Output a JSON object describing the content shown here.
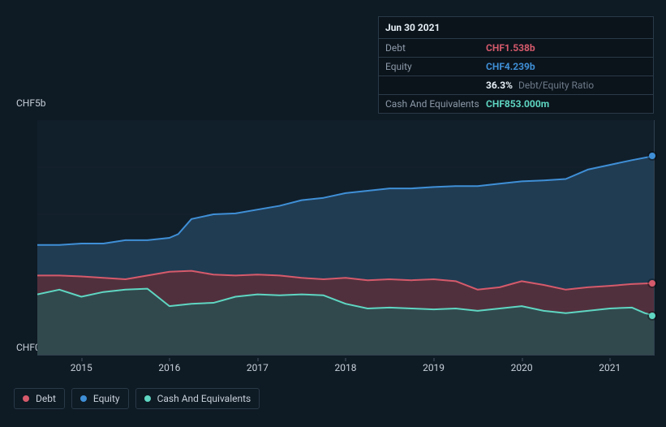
{
  "chart": {
    "type": "area",
    "background_color": "#0e1a24",
    "grid_color": "#16222e",
    "plot_background": "#111f2b",
    "y": {
      "min": 0,
      "max": 5,
      "labels_top": "CHF5b",
      "labels_bottom": "CHF0"
    },
    "x": {
      "min": 2014.5,
      "max": 2021.5,
      "ticks": [
        2015,
        2016,
        2017,
        2018,
        2019,
        2020,
        2021
      ],
      "tick_labels": [
        "2015",
        "2016",
        "2017",
        "2018",
        "2019",
        "2020",
        "2021"
      ]
    },
    "cursor_x": 2021.5,
    "series": {
      "equity": {
        "label": "Equity",
        "color_line": "#3f8fd6",
        "color_fill": "#223f58",
        "fill_opacity": 0.9,
        "line_width": 2,
        "points": [
          [
            2014.5,
            2.35
          ],
          [
            2014.75,
            2.35
          ],
          [
            2015.0,
            2.38
          ],
          [
            2015.25,
            2.38
          ],
          [
            2015.5,
            2.45
          ],
          [
            2015.75,
            2.45
          ],
          [
            2016.0,
            2.5
          ],
          [
            2016.1,
            2.58
          ],
          [
            2016.25,
            2.9
          ],
          [
            2016.5,
            3.0
          ],
          [
            2016.75,
            3.02
          ],
          [
            2017.0,
            3.1
          ],
          [
            2017.25,
            3.18
          ],
          [
            2017.5,
            3.3
          ],
          [
            2017.75,
            3.35
          ],
          [
            2018.0,
            3.45
          ],
          [
            2018.25,
            3.5
          ],
          [
            2018.5,
            3.55
          ],
          [
            2018.75,
            3.55
          ],
          [
            2019.0,
            3.58
          ],
          [
            2019.25,
            3.6
          ],
          [
            2019.5,
            3.6
          ],
          [
            2019.75,
            3.65
          ],
          [
            2020.0,
            3.7
          ],
          [
            2020.25,
            3.72
          ],
          [
            2020.5,
            3.75
          ],
          [
            2020.75,
            3.95
          ],
          [
            2021.0,
            4.05
          ],
          [
            2021.25,
            4.15
          ],
          [
            2021.5,
            4.239
          ]
        ]
      },
      "debt": {
        "label": "Debt",
        "color_line": "#d55a6b",
        "color_fill": "#5a2e3a",
        "fill_opacity": 0.85,
        "line_width": 2,
        "points": [
          [
            2014.5,
            1.7
          ],
          [
            2014.75,
            1.7
          ],
          [
            2015.0,
            1.68
          ],
          [
            2015.25,
            1.65
          ],
          [
            2015.5,
            1.62
          ],
          [
            2015.75,
            1.7
          ],
          [
            2016.0,
            1.78
          ],
          [
            2016.25,
            1.8
          ],
          [
            2016.5,
            1.72
          ],
          [
            2016.75,
            1.7
          ],
          [
            2017.0,
            1.72
          ],
          [
            2017.25,
            1.7
          ],
          [
            2017.5,
            1.65
          ],
          [
            2017.75,
            1.62
          ],
          [
            2018.0,
            1.65
          ],
          [
            2018.25,
            1.6
          ],
          [
            2018.5,
            1.62
          ],
          [
            2018.75,
            1.6
          ],
          [
            2019.0,
            1.62
          ],
          [
            2019.25,
            1.58
          ],
          [
            2019.5,
            1.4
          ],
          [
            2019.75,
            1.45
          ],
          [
            2020.0,
            1.58
          ],
          [
            2020.25,
            1.5
          ],
          [
            2020.5,
            1.4
          ],
          [
            2020.75,
            1.45
          ],
          [
            2021.0,
            1.48
          ],
          [
            2021.25,
            1.52
          ],
          [
            2021.5,
            1.538
          ]
        ]
      },
      "cash": {
        "label": "Cash And Equivalents",
        "color_line": "#5fd6c2",
        "color_fill": "#2c4d50",
        "fill_opacity": 0.85,
        "line_width": 2,
        "points": [
          [
            2014.5,
            1.3
          ],
          [
            2014.75,
            1.4
          ],
          [
            2015.0,
            1.25
          ],
          [
            2015.25,
            1.35
          ],
          [
            2015.5,
            1.4
          ],
          [
            2015.75,
            1.42
          ],
          [
            2016.0,
            1.05
          ],
          [
            2016.25,
            1.1
          ],
          [
            2016.5,
            1.12
          ],
          [
            2016.75,
            1.25
          ],
          [
            2017.0,
            1.3
          ],
          [
            2017.25,
            1.28
          ],
          [
            2017.5,
            1.3
          ],
          [
            2017.75,
            1.28
          ],
          [
            2018.0,
            1.1
          ],
          [
            2018.25,
            1.0
          ],
          [
            2018.5,
            1.02
          ],
          [
            2018.75,
            1.0
          ],
          [
            2019.0,
            0.98
          ],
          [
            2019.25,
            1.0
          ],
          [
            2019.5,
            0.95
          ],
          [
            2019.75,
            1.0
          ],
          [
            2020.0,
            1.05
          ],
          [
            2020.25,
            0.95
          ],
          [
            2020.5,
            0.9
          ],
          [
            2020.75,
            0.95
          ],
          [
            2021.0,
            1.0
          ],
          [
            2021.25,
            1.02
          ],
          [
            2021.4,
            0.9
          ],
          [
            2021.5,
            0.853
          ]
        ]
      }
    },
    "end_markers": [
      {
        "series": "equity",
        "color": "#3f8fd6"
      },
      {
        "series": "debt",
        "color": "#d55a6b"
      },
      {
        "series": "cash",
        "color": "#5fd6c2"
      }
    ]
  },
  "tooltip": {
    "date": "Jun 30 2021",
    "rows": [
      {
        "label": "Debt",
        "value": "CHF1.538b",
        "value_color": "#d55a6b"
      },
      {
        "label": "Equity",
        "value": "CHF4.239b",
        "value_color": "#3f8fd6"
      },
      {
        "label": "",
        "value": "36.3%",
        "value_color": "#e6eef5",
        "extra": "Debt/Equity Ratio"
      },
      {
        "label": "Cash And Equivalents",
        "value": "CHF853.000m",
        "value_color": "#5fd6c2"
      }
    ]
  },
  "legend": {
    "items": [
      {
        "key": "debt",
        "label": "Debt",
        "color": "#d55a6b"
      },
      {
        "key": "equity",
        "label": "Equity",
        "color": "#3f8fd6"
      },
      {
        "key": "cash",
        "label": "Cash And Equivalents",
        "color": "#5fd6c2"
      }
    ]
  }
}
